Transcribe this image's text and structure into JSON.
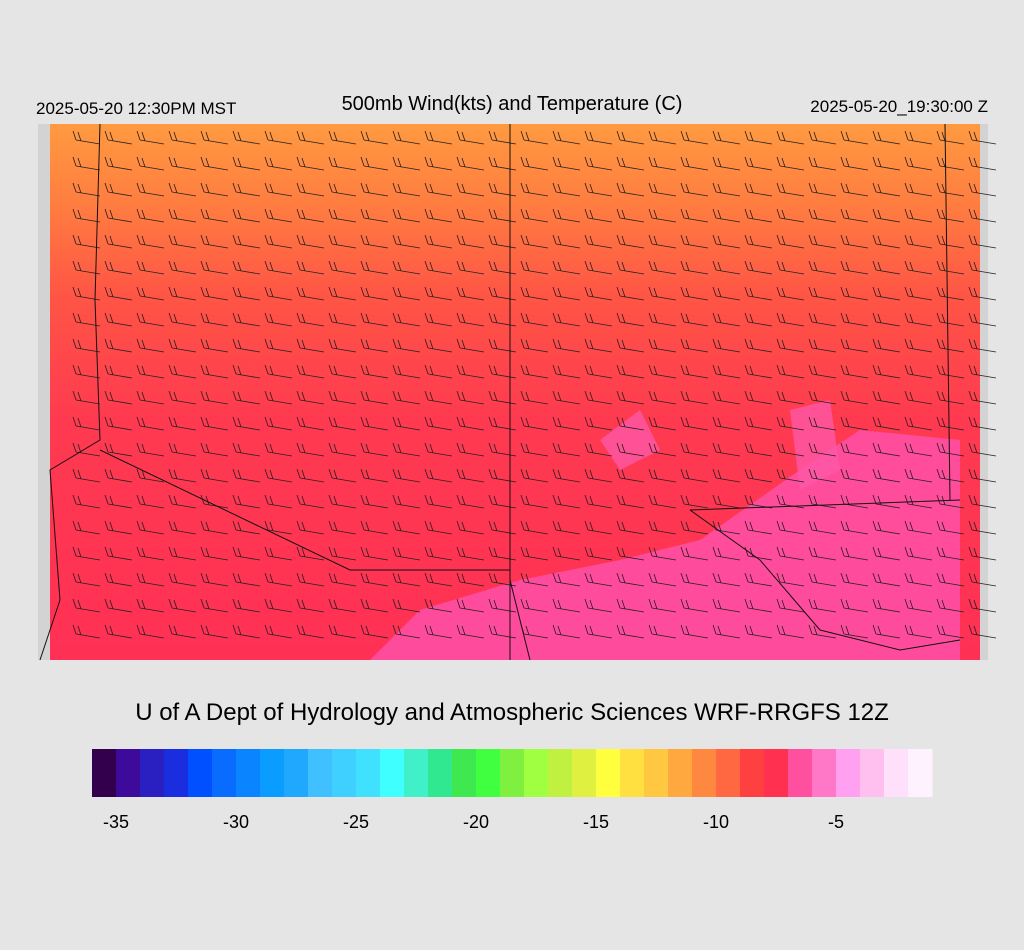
{
  "header": {
    "local_time": "2025-05-20 12:30PM MST",
    "title": "500mb Wind(kts) and Temperature (C)",
    "valid_time": "2025-05-20_19:30:00 Z"
  },
  "credit": "U of A Dept of Hydrology and Atmospheric Sciences WRF-RRGFS 12Z",
  "colorbar": {
    "colors": [
      "#33004d",
      "#3d0a99",
      "#2a1fc0",
      "#1a2ee0",
      "#0050ff",
      "#0a6cff",
      "#0a85ff",
      "#0a9cff",
      "#20a8ff",
      "#40c0ff",
      "#40d0ff",
      "#40e0ff",
      "#40ffff",
      "#40f0c8",
      "#30e890",
      "#40e850",
      "#40ff40",
      "#80f040",
      "#a0ff40",
      "#c0f040",
      "#e0f040",
      "#ffff40",
      "#ffe040",
      "#ffc840",
      "#ffa840",
      "#ff8840",
      "#ff6840",
      "#ff4040",
      "#ff3050",
      "#ff50a0",
      "#ff78c8",
      "#ffa0f0",
      "#ffc0f0",
      "#ffe0fa",
      "#fff2ff"
    ],
    "ticks": [
      "-35",
      "-30",
      "-25",
      "-20",
      "-15",
      "-10",
      "-5"
    ]
  }
}
